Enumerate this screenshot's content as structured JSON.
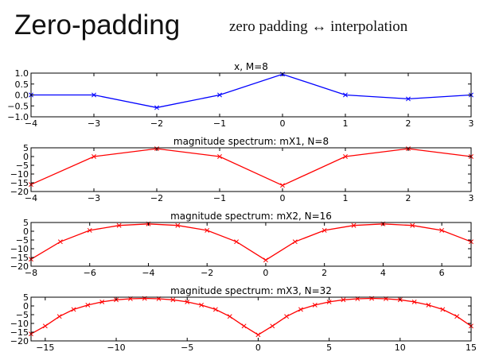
{
  "slide": {
    "title": "Zero-padding",
    "subtitle": "zero padding ↔ interpolation"
  },
  "chart_data": [
    {
      "type": "line",
      "title": "x, M=8",
      "color": "#0000ff",
      "marker": "x",
      "x": [
        -4,
        -3,
        -2,
        -1,
        0,
        1,
        2,
        3
      ],
      "y": [
        0.0,
        0.0,
        -0.58,
        0.0,
        0.95,
        0.0,
        -0.18,
        0.0
      ],
      "xlim": [
        -4,
        3
      ],
      "ylim": [
        -1.0,
        1.0
      ],
      "xticks": [
        -4,
        -3,
        -2,
        -1,
        0,
        1,
        2,
        3
      ],
      "xticklabels": [
        "−4",
        "−3",
        "−2",
        "−1",
        "0",
        "1",
        "2",
        "3"
      ],
      "yticks": [
        1.0,
        0.5,
        0.0,
        -0.5,
        -1.0
      ],
      "yticklabels": [
        "1.0",
        "0.5",
        "0.0",
        "−0.5",
        "−1.0"
      ]
    },
    {
      "type": "line",
      "title": "magnitude spectrum: mX1, N=8",
      "color": "#ff0000",
      "marker": "x",
      "x": [
        -4,
        -3,
        -2,
        -1,
        0,
        1,
        2,
        3
      ],
      "y": [
        -16.0,
        0.0,
        4.5,
        0.0,
        -16.5,
        0.0,
        4.5,
        0.0
      ],
      "xlim": [
        -4,
        3
      ],
      "ylim": [
        -20,
        5
      ],
      "xticks": [
        -4,
        -3,
        -2,
        -1,
        0,
        1,
        2,
        3
      ],
      "xticklabels": [
        "−4",
        "−3",
        "−2",
        "−1",
        "0",
        "1",
        "2",
        "3"
      ],
      "yticks": [
        5,
        0,
        -5,
        -10,
        -15,
        -20
      ],
      "yticklabels": [
        "5",
        "0",
        "−5",
        "−10",
        "−15",
        "−20"
      ]
    },
    {
      "type": "line",
      "title": "magnitude spectrum: mX2, N=16",
      "color": "#ff0000",
      "marker": "x",
      "x": [
        -8,
        -7,
        -6,
        -5,
        -4,
        -3,
        -2,
        -1,
        0,
        1,
        2,
        3,
        4,
        5,
        6,
        7
      ],
      "y": [
        -16.0,
        -6.0,
        0.5,
        3.3,
        4.2,
        3.3,
        0.5,
        -6.0,
        -16.5,
        -6.0,
        0.5,
        3.3,
        4.2,
        3.3,
        0.5,
        -6.0
      ],
      "xlim": [
        -8,
        7
      ],
      "ylim": [
        -20,
        5
      ],
      "xticks": [
        -8,
        -6,
        -4,
        -2,
        0,
        2,
        4,
        6
      ],
      "xticklabels": [
        "−8",
        "−6",
        "−4",
        "−2",
        "0",
        "2",
        "4",
        "6"
      ],
      "yticks": [
        5,
        0,
        -5,
        -10,
        -15,
        -20
      ],
      "yticklabels": [
        "5",
        "0",
        "−5",
        "−10",
        "−15",
        "−20"
      ]
    },
    {
      "type": "line",
      "title": "magnitude spectrum: mX3, N=32",
      "color": "#ff0000",
      "marker": "x",
      "x": [
        -16,
        -15,
        -14,
        -13,
        -12,
        -11,
        -10,
        -9,
        -8,
        -7,
        -6,
        -5,
        -4,
        -3,
        -2,
        -1,
        0,
        1,
        2,
        3,
        4,
        5,
        6,
        7,
        8,
        9,
        10,
        11,
        12,
        13,
        14,
        15
      ],
      "y": [
        -16.0,
        -11.5,
        -6.0,
        -2.0,
        0.5,
        2.3,
        3.5,
        4.1,
        4.3,
        4.1,
        3.5,
        2.3,
        0.5,
        -2.0,
        -6.0,
        -11.5,
        -16.5,
        -11.5,
        -6.0,
        -2.0,
        0.5,
        2.3,
        3.5,
        4.1,
        4.3,
        4.1,
        3.5,
        2.3,
        0.5,
        -2.0,
        -6.0,
        -11.5
      ],
      "xlim": [
        -16,
        15
      ],
      "ylim": [
        -20,
        5
      ],
      "xticks": [
        -15,
        -10,
        -5,
        0,
        5,
        10,
        15
      ],
      "xticklabels": [
        "−15",
        "−10",
        "−5",
        "0",
        "5",
        "10",
        "15"
      ],
      "yticks": [
        5,
        0,
        -5,
        -10,
        -15,
        -20
      ],
      "yticklabels": [
        "5",
        "0",
        "−5",
        "−10",
        "−15",
        "−20"
      ]
    }
  ]
}
